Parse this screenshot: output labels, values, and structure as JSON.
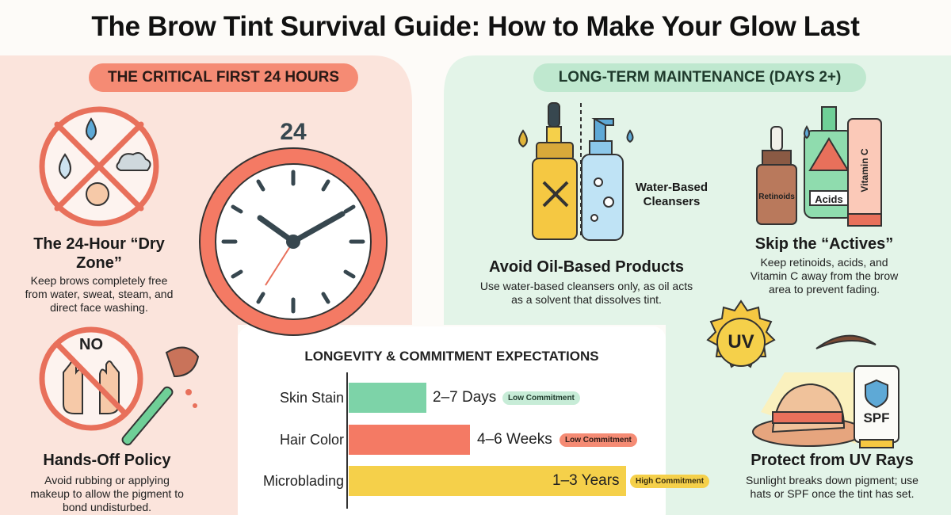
{
  "title": "The Brow Tint Survival Guide: How to Make Your Glow Last",
  "sections": {
    "first_24": "THE CRITICAL FIRST 24 HOURS",
    "long_term": "LONG-TERM MAINTENANCE (DAYS 2+)"
  },
  "clock": {
    "label": "24"
  },
  "dry_zone": {
    "title": "The 24-Hour “Dry Zone”",
    "description": "Keep brows completely free from water, sweat, steam, and direct face washing."
  },
  "hands_off": {
    "sign": "NO",
    "title": "Hands-Off Policy",
    "description": "Avoid rubbing or applying makeup to allow the pigment to bond undisturbed."
  },
  "oil": {
    "bottle_label": "Water-Based Cleansers",
    "title": "Avoid Oil-Based Products",
    "description": "Use water-based cleansers only, as oil acts as a solvent that dissolves tint."
  },
  "actives": {
    "labels": [
      "Retinoids",
      "Acids",
      "Vitamin C"
    ],
    "title": "Skip the “Actives”",
    "description": "Keep retinoids, acids, and Vitamin C away from the brow area to prevent fading."
  },
  "uv": {
    "sun": "UV",
    "tube": "SPF",
    "title": "Protect from UV Rays",
    "description": "Sunlight breaks down pigment; use hats or SPF once the tint has set."
  },
  "longevity": {
    "title": "LONGEVITY & COMMITMENT EXPECTATIONS",
    "rows": [
      {
        "label": "Skin Stain",
        "duration": "2–7 Days",
        "commitment": "Low Commitment"
      },
      {
        "label": "Hair Color",
        "duration": "4–6 Weeks",
        "commitment": "Low Commitment"
      },
      {
        "label": "Microblading",
        "duration": "1–3 Years",
        "commitment": "High Commitment"
      }
    ]
  }
}
